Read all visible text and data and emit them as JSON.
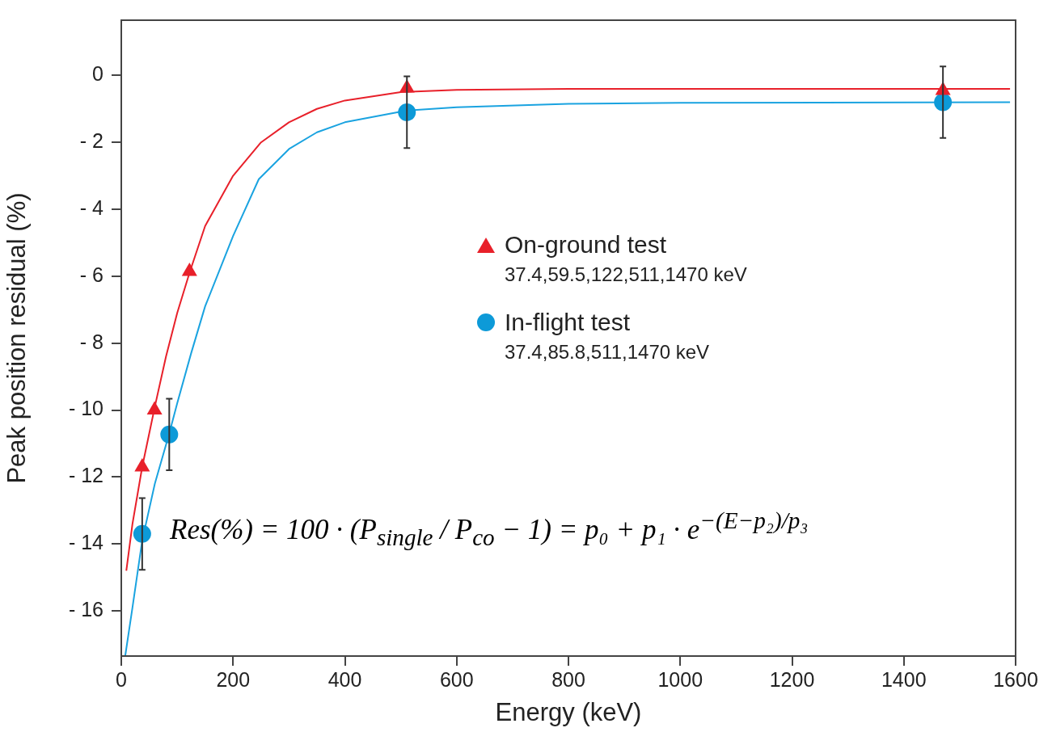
{
  "chart_data": {
    "type": "scatter",
    "xlabel": "Energy (keV)",
    "ylabel": "Peak position residual (%)",
    "xlim": [
      0,
      1600
    ],
    "xticks": [
      0,
      200,
      400,
      600,
      800,
      1000,
      1200,
      1400,
      1600
    ],
    "ylim": [
      -17.35,
      1.65
    ],
    "yticks": [
      {
        "value": 0,
        "label": "0"
      },
      {
        "value": -2,
        "label": "- 2"
      },
      {
        "value": -4,
        "label": "- 4"
      },
      {
        "value": -6,
        "label": "- 6"
      },
      {
        "value": -8,
        "label": "- 8"
      },
      {
        "value": -10,
        "label": "- 10"
      },
      {
        "value": -12,
        "label": "- 12"
      },
      {
        "value": -14,
        "label": "- 14"
      },
      {
        "value": -16,
        "label": "- 16"
      }
    ],
    "grid": false,
    "legend": "center",
    "series": [
      {
        "type": "line",
        "marker": "none",
        "color": "#e8202a",
        "x": [
          9,
          20,
          37.4,
          60,
          80,
          100,
          122,
          150,
          200,
          250,
          300,
          350,
          400,
          500,
          600,
          800,
          1590
        ],
        "values": [
          -14.8,
          -13.4,
          -11.7,
          -9.9,
          -8.4,
          -7.1,
          -5.9,
          -4.5,
          -3.0,
          -2.0,
          -1.4,
          -1.0,
          -0.75,
          -0.5,
          -0.43,
          -0.4,
          -0.4
        ]
      },
      {
        "type": "line",
        "marker": "none",
        "color": "#1aa3e0",
        "x": [
          7,
          20,
          37.4,
          60,
          85.8,
          100,
          125,
          150,
          200,
          246,
          300,
          350,
          400,
          511,
          600,
          800,
          1000,
          1590
        ],
        "values": [
          -17.35,
          -15.9,
          -13.9,
          -12.2,
          -10.7,
          -9.8,
          -8.3,
          -6.9,
          -4.8,
          -3.1,
          -2.2,
          -1.7,
          -1.4,
          -1.05,
          -0.95,
          -0.85,
          -0.82,
          -0.8
        ]
      },
      {
        "name": "On-ground test",
        "marker": "triangle",
        "color": "#e8202a",
        "x": [
          37.4,
          59.5,
          122,
          511,
          1470
        ],
        "values": [
          -11.7,
          -10.0,
          -5.86,
          -0.38,
          -0.45
        ]
      },
      {
        "name": "In-flight test",
        "marker": "circle",
        "color": "#0d9ad8",
        "x": [
          37.4,
          85.8,
          511,
          1470
        ],
        "values": [
          -13.7,
          -10.73,
          -1.1,
          -0.8
        ],
        "errors": [
          1.07,
          1.07,
          1.07,
          1.07
        ]
      }
    ],
    "annotations": [
      "37.4,59.5,122,511,1470 keV",
      "37.4,85.8,511,1470 keV",
      "Res(%) = 100 · (P$_{single}$ / P$_{co}$ − 1) = p₀ + p₁ · e$^{−(E−p₂)/p₃}$"
    ]
  }
}
